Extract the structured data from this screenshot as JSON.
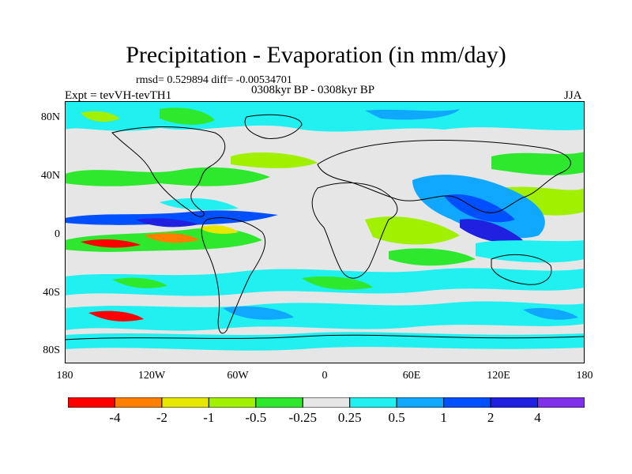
{
  "title": "Precipitation - Evaporation (in mm/day)",
  "stats": "rmsd= 0.529894 diff= -0.00534701",
  "experiment": "Expt = tevVH-tevTH1",
  "period": "0308kyr BP - 0308kyr BP",
  "season": "JJA",
  "chart_data": {
    "type": "heatmap",
    "title": "Precipitation - Evaporation (in mm/day)",
    "projection": "cylindrical equidistant",
    "x_ticks": [
      "180",
      "120W",
      "60W",
      "0",
      "60E",
      "120E",
      "180"
    ],
    "y_ticks": [
      "80N",
      "40N",
      "0",
      "40S",
      "80S"
    ],
    "contour_levels": [
      "-4",
      "-2",
      "-1",
      "-0.5",
      "-0.25",
      "0.25",
      "0.5",
      "1",
      "2",
      "4"
    ],
    "colors": [
      "#ff0000",
      "#ff8000",
      "#e6e600",
      "#a0f000",
      "#2ee82e",
      "#e6e6e6",
      "#20f0f0",
      "#10a8ff",
      "#0050ff",
      "#2020e0",
      "#8030e8"
    ]
  },
  "icons": {
    "map": "world-map-icon",
    "colorbar": "colorbar-icon"
  }
}
